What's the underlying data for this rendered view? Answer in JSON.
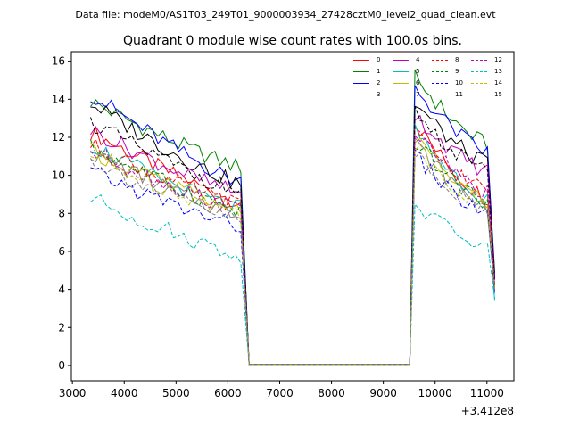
{
  "chart_data": {
    "type": "line",
    "suptitle": "Data file: modeM0/AS1T03_249T01_9000003934_27428cztM0_level2_quad_clean.evt",
    "title": "Quadrant 0 module wise count rates with 100.0s bins.",
    "x_offset_text": "+3.412e8",
    "xlim": [
      2980,
      11520
    ],
    "ylim": [
      -0.8,
      16.5
    ],
    "x_ticks": [
      3000,
      4000,
      5000,
      6000,
      7000,
      8000,
      9000,
      10000,
      11000
    ],
    "y_ticks": [
      0,
      2,
      4,
      6,
      8,
      10,
      12,
      14,
      16
    ],
    "gap": {
      "start": 6410,
      "end": 9510
    },
    "x_range": [
      3350,
      11150
    ],
    "bin": 100,
    "legend_location": "upper right",
    "series": [
      {
        "name": "0",
        "color": "#ff0000",
        "dash": "solid",
        "start": 12.3,
        "end_seg1": 8.6,
        "start2": 12.8,
        "end2": 8.8,
        "end_final": 4.2
      },
      {
        "name": "1",
        "color": "#008000",
        "dash": "solid",
        "start": 13.9,
        "end_seg1": 10.4,
        "start2": 15.2,
        "end2": 11.6,
        "end_final": 4.9
      },
      {
        "name": "2",
        "color": "#0000ff",
        "dash": "solid",
        "start": 14.3,
        "end_seg1": 9.6,
        "start2": 14.6,
        "end2": 11.2,
        "end_final": 4.7
      },
      {
        "name": "3",
        "color": "#000000",
        "dash": "solid",
        "start": 13.8,
        "end_seg1": 9.5,
        "start2": 13.8,
        "end2": 10.6,
        "end_final": 4.6
      },
      {
        "name": "4",
        "color": "#bf00bf",
        "dash": "solid",
        "start": 12.4,
        "end_seg1": 9.0,
        "start2": 13.2,
        "end2": 10.2,
        "end_final": 4.5
      },
      {
        "name": "5",
        "color": "#00bfbf",
        "dash": "solid",
        "start": 11.6,
        "end_seg1": 8.2,
        "start2": 12.4,
        "end2": 8.8,
        "end_final": 3.4
      },
      {
        "name": "6",
        "color": "#bfbf00",
        "dash": "solid",
        "start": 11.3,
        "end_seg1": 8.2,
        "start2": 12.0,
        "end2": 8.6,
        "end_final": 4.1
      },
      {
        "name": "7",
        "color": "#808080",
        "dash": "solid",
        "start": 11.2,
        "end_seg1": 7.9,
        "start2": 11.7,
        "end2": 8.4,
        "end_final": 4.0
      },
      {
        "name": "8",
        "color": "#ff0000",
        "dash": "dashed",
        "start": 11.6,
        "end_seg1": 8.4,
        "start2": 12.2,
        "end2": 9.2,
        "end_final": 4.3
      },
      {
        "name": "9",
        "color": "#008000",
        "dash": "dashed",
        "start": 11.5,
        "end_seg1": 8.1,
        "start2": 11.8,
        "end2": 8.6,
        "end_final": 4.2
      },
      {
        "name": "10",
        "color": "#0000ff",
        "dash": "dashed",
        "start": 10.2,
        "end_seg1": 7.3,
        "start2": 11.1,
        "end2": 7.9,
        "end_final": 3.8
      },
      {
        "name": "11",
        "color": "#000000",
        "dash": "dashed",
        "start": 12.8,
        "end_seg1": 9.1,
        "start2": 13.4,
        "end2": 10.1,
        "end_final": 4.5
      },
      {
        "name": "12",
        "color": "#bf00bf",
        "dash": "dashed",
        "start": 11.3,
        "end_seg1": 8.2,
        "start2": 12.4,
        "end2": 9.0,
        "end_final": 4.2
      },
      {
        "name": "13",
        "color": "#00bfbf",
        "dash": "dashed",
        "start": 8.8,
        "end_seg1": 5.8,
        "start2": 8.5,
        "end2": 6.2,
        "end_final": 3.5
      },
      {
        "name": "14",
        "color": "#bfbf00",
        "dash": "dashed",
        "start": 11.0,
        "end_seg1": 8.0,
        "start2": 11.6,
        "end2": 8.3,
        "end_final": 4.0
      },
      {
        "name": "15",
        "color": "#808080",
        "dash": "dashed",
        "start": 10.8,
        "end_seg1": 7.6,
        "start2": 11.3,
        "end2": 8.1,
        "end_final": 3.9
      }
    ]
  }
}
